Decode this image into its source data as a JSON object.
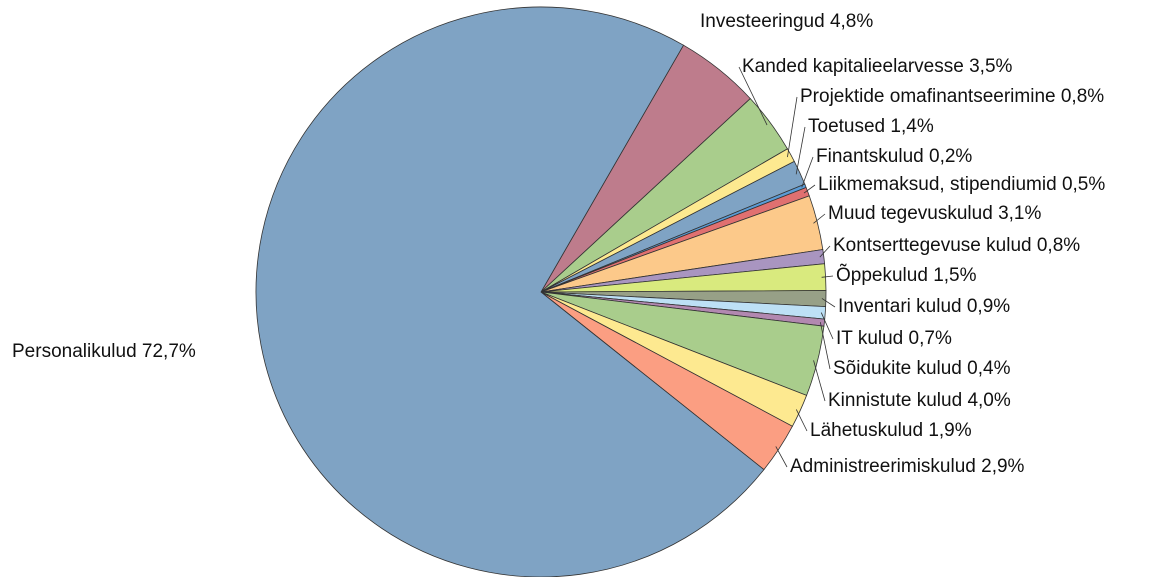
{
  "chart_data": {
    "type": "pie",
    "categories": [
      "Investeeringud",
      "Kanded kapitalieelarvesse",
      "Projektide omafinantseerimine",
      "Toetused",
      "Finantskulud",
      "Liikmemaksud, stipendiumid",
      "Muud tegevuskulud",
      "Kontserttegevuse kulud",
      "Õppekulud",
      "Inventari kulud",
      "IT kulud",
      "Sõidukite kulud",
      "Kinnistute kulud",
      "Lähetuskulud",
      "Administreerimiskulud",
      "Personalikulud"
    ],
    "values": [
      4.8,
      3.5,
      0.8,
      1.4,
      0.2,
      0.5,
      3.1,
      0.8,
      1.5,
      0.9,
      0.7,
      0.4,
      4.0,
      1.9,
      2.9,
      72.7
    ],
    "value_labels": [
      "4,8%",
      "3,5%",
      "0,8%",
      "1,4%",
      "0,2%",
      "0,5%",
      "3,1%",
      "0,8%",
      "1,5%",
      "0,9%",
      "0,7%",
      "0,4%",
      "4,0%",
      "1,9%",
      "2,9%",
      "72,7%"
    ],
    "colors": [
      "#be7c8c",
      "#a9cd8c",
      "#fde990",
      "#7fa3c4",
      "#5b9bd5",
      "#e07070",
      "#fcc98a",
      "#a995c0",
      "#d9ea7e",
      "#97a087",
      "#bde0f5",
      "#b288b0",
      "#a9cd8c",
      "#fde990",
      "#fb9e82",
      "#7fa3c4"
    ]
  }
}
